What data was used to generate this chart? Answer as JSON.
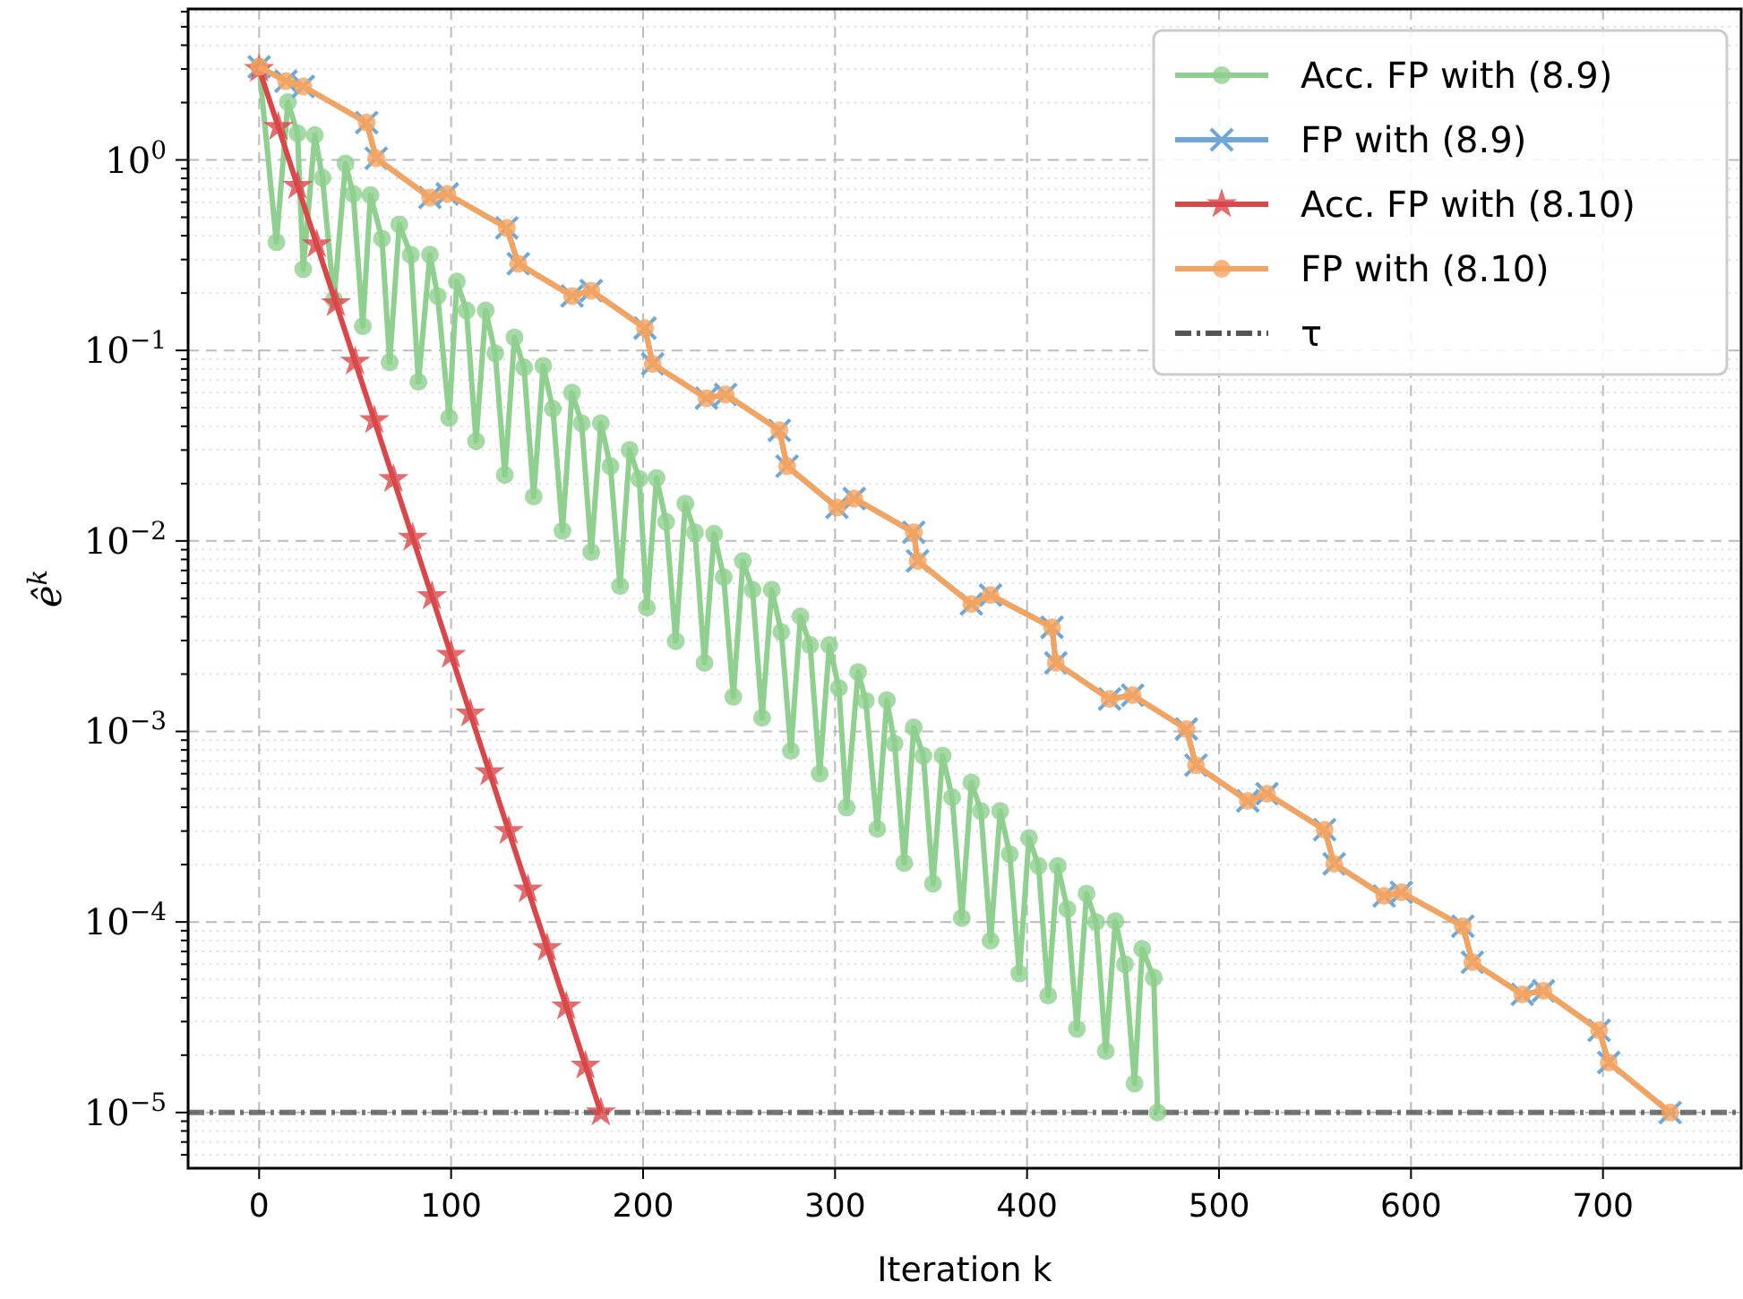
{
  "chart_data": {
    "type": "line",
    "xlabel": "Iteration k",
    "ylabel": "ê$^{k}$",
    "log": "y",
    "grid": true,
    "legend": "top right",
    "xlim": [
      -37,
      772
    ],
    "xticks": [
      0,
      100,
      200,
      300,
      400,
      500,
      600,
      700
    ],
    "ylim": [
      5.1e-06,
      6.2
    ],
    "yticks": [
      {
        "value": 1,
        "label": "10$^{0}$"
      },
      {
        "value": 0.1,
        "label": "10$^{−1}$"
      },
      {
        "value": 0.01,
        "label": "10$^{−2}$"
      },
      {
        "value": 0.001,
        "label": "10$^{−3}$"
      },
      {
        "value": 0.0001,
        "label": "10$^{−4}$"
      },
      {
        "value": 1e-05,
        "label": "10$^{−5}$"
      }
    ],
    "series": [
      {
        "name": "Acc. FP with (8.9)",
        "color": "#8fcf8f",
        "marker": "circle",
        "x": [
          0,
          9,
          15,
          20,
          23,
          29,
          33,
          39,
          45,
          49,
          54,
          58,
          64,
          68,
          73,
          79,
          83,
          89,
          93,
          99,
          103,
          108,
          113,
          118,
          123,
          128,
          133,
          138,
          143,
          148,
          153,
          158,
          163,
          168,
          173,
          178,
          183,
          188,
          193,
          198,
          202,
          207,
          212,
          217,
          222,
          227,
          232,
          237,
          242,
          247,
          252,
          257,
          262,
          267,
          272,
          277,
          282,
          287,
          292,
          297,
          302,
          306,
          312,
          316,
          322,
          327,
          331,
          336,
          341,
          346,
          351,
          356,
          361,
          366,
          371,
          376,
          381,
          386,
          391,
          396,
          401,
          406,
          411,
          416,
          421,
          426,
          431,
          436,
          441,
          446,
          451,
          456,
          460,
          466,
          468
        ],
        "values": [
          3.08,
          0.37,
          2.01,
          1.38,
          0.267,
          1.35,
          0.805,
          0.185,
          0.957,
          0.663,
          0.134,
          0.653,
          0.386,
          0.0867,
          0.459,
          0.318,
          0.0684,
          0.318,
          0.193,
          0.0443,
          0.23,
          0.162,
          0.0334,
          0.162,
          0.0966,
          0.0222,
          0.117,
          0.0813,
          0.0171,
          0.083,
          0.0494,
          0.0113,
          0.06,
          0.0415,
          0.00875,
          0.0415,
          0.0247,
          0.0058,
          0.03,
          0.0212,
          0.00447,
          0.0214,
          0.0126,
          0.00298,
          0.0157,
          0.0111,
          0.00229,
          0.0109,
          0.00646,
          0.00152,
          0.00785,
          0.00555,
          0.00118,
          0.00555,
          0.00333,
          0.000792,
          0.00402,
          0.00284,
          0.000601,
          0.00284,
          0.00169,
          0.000399,
          0.00205,
          0.00145,
          0.000308,
          0.00146,
          0.000863,
          0.000204,
          0.00105,
          0.000746,
          0.000159,
          0.000746,
          0.000451,
          0.000105,
          0.00054,
          0.000382,
          7.98e-05,
          0.000382,
          0.000227,
          5.37e-05,
          0.000276,
          0.000197,
          4.11e-05,
          0.000197,
          0.000117,
          2.75e-05,
          0.000141,
          0.0001,
          2.1e-05,
          0.000101,
          6e-05,
          1.42e-05,
          7.22e-05,
          5.1e-05,
          1e-05
        ]
      },
      {
        "name": "FP with (8.9)",
        "color": "#6fa8d6",
        "marker": "cross",
        "x": [
          0,
          14,
          23,
          56,
          61,
          89,
          98,
          129,
          135,
          163,
          173,
          201,
          205,
          233,
          243,
          271,
          275,
          301,
          310,
          341,
          343,
          371,
          381,
          413,
          415,
          443,
          455,
          483,
          488,
          515,
          525,
          555,
          560,
          586,
          595,
          627,
          632,
          658,
          669,
          698,
          703,
          735
        ],
        "values": [
          3.08,
          2.59,
          2.43,
          1.57,
          1.02,
          0.635,
          0.663,
          0.44,
          0.285,
          0.193,
          0.206,
          0.131,
          0.0849,
          0.0562,
          0.0587,
          0.0381,
          0.0247,
          0.015,
          0.0167,
          0.0111,
          0.00785,
          0.00467,
          0.0052,
          0.00352,
          0.00229,
          0.00148,
          0.00155,
          0.00103,
          0.000665,
          0.000432,
          0.000471,
          0.000305,
          0.000202,
          0.000137,
          0.000143,
          9.5e-05,
          6.15e-05,
          4.17e-05,
          4.35e-05,
          2.7e-05,
          1.83e-05,
          1e-05
        ]
      },
      {
        "name": "Acc. FP with (8.10)",
        "color": "#d9474a",
        "marker": "star",
        "x": [
          0,
          10,
          20,
          30,
          40,
          50,
          60,
          70,
          80,
          90,
          100,
          110,
          120,
          130,
          140,
          150,
          160,
          170,
          178
        ],
        "values": [
          3.0,
          1.49,
          0.73,
          0.36,
          0.177,
          0.0873,
          0.043,
          0.0211,
          0.0104,
          0.00512,
          0.00252,
          0.00124,
          0.00061,
          0.0003,
          0.000148,
          7.3e-05,
          3.6e-05,
          1.76e-05,
          1e-05
        ]
      },
      {
        "name": "FP with (8.10)",
        "color": "#f5a460",
        "marker": "circle",
        "x": [
          0,
          14,
          23,
          56,
          61,
          89,
          98,
          129,
          135,
          163,
          173,
          201,
          205,
          233,
          243,
          271,
          275,
          301,
          310,
          341,
          343,
          371,
          381,
          413,
          415,
          443,
          455,
          483,
          488,
          515,
          525,
          555,
          560,
          586,
          595,
          627,
          632,
          658,
          669,
          698,
          703,
          735
        ],
        "values": [
          3.08,
          2.59,
          2.43,
          1.57,
          1.02,
          0.635,
          0.663,
          0.44,
          0.285,
          0.193,
          0.206,
          0.131,
          0.0849,
          0.0562,
          0.0587,
          0.0381,
          0.0247,
          0.015,
          0.0167,
          0.0111,
          0.00785,
          0.00467,
          0.0052,
          0.00352,
          0.00229,
          0.00148,
          0.00155,
          0.00103,
          0.000665,
          0.000432,
          0.000471,
          0.000305,
          0.000202,
          0.000137,
          0.000143,
          9.5e-05,
          6.15e-05,
          4.17e-05,
          4.35e-05,
          2.7e-05,
          1.83e-05,
          1e-05
        ]
      }
    ],
    "ref_lines": [
      {
        "axis": "y",
        "value": 1e-05,
        "label": "τ",
        "color": "#555555",
        "line_style": "dashed"
      }
    ]
  }
}
